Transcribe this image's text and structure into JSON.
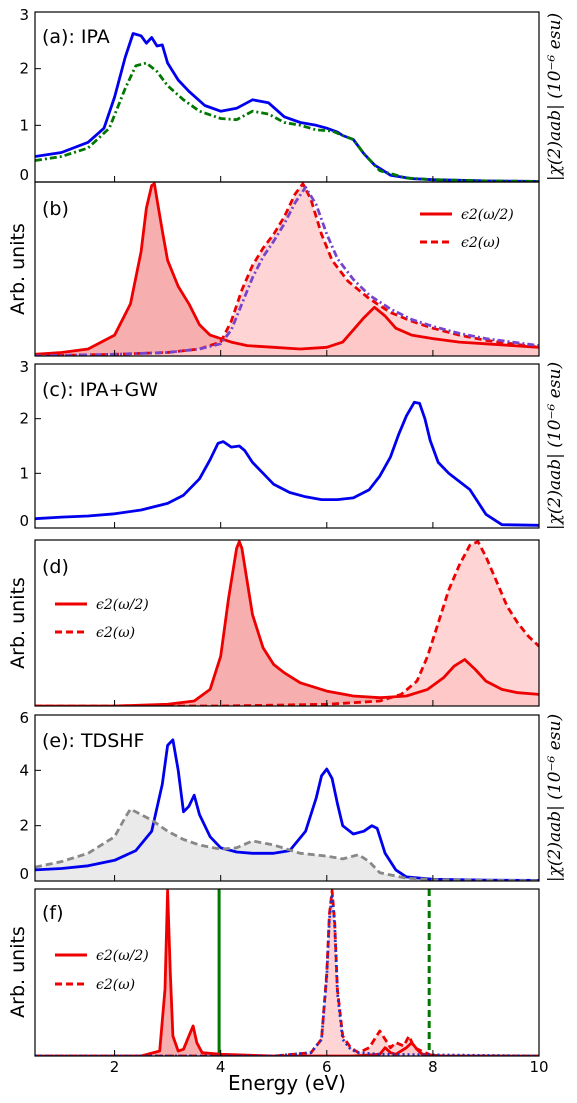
{
  "chart_data": [
    {
      "id": "a",
      "type": "line",
      "panel_label": "(a): IPA",
      "xlim": [
        0.5,
        10
      ],
      "ylim": [
        0,
        3
      ],
      "yticks": [
        "0",
        "1",
        "2",
        "3"
      ],
      "right_label": "|χ(2)aab| (10⁻⁶ esu)",
      "series": [
        {
          "color": "#0000ee",
          "style": "solid",
          "x": [
            0.5,
            1,
            1.5,
            1.8,
            2.0,
            2.2,
            2.35,
            2.5,
            2.6,
            2.7,
            2.8,
            2.9,
            3.0,
            3.2,
            3.4,
            3.7,
            4.0,
            4.3,
            4.6,
            4.9,
            5.2,
            5.5,
            5.8,
            6.0,
            6.2,
            6.3,
            6.5,
            6.7,
            6.9,
            7.2,
            7.6,
            8,
            9,
            10
          ],
          "y": [
            0.45,
            0.52,
            0.7,
            0.95,
            1.5,
            2.2,
            2.62,
            2.58,
            2.45,
            2.55,
            2.4,
            2.42,
            2.1,
            1.8,
            1.6,
            1.35,
            1.25,
            1.3,
            1.45,
            1.4,
            1.15,
            1.05,
            1.0,
            0.95,
            0.88,
            0.82,
            0.75,
            0.5,
            0.3,
            0.12,
            0.06,
            0.04,
            0.02,
            0.01
          ]
        },
        {
          "color": "#007700",
          "style": "dashdot",
          "x": [
            0.5,
            1,
            1.5,
            1.9,
            2.2,
            2.4,
            2.6,
            2.8,
            3.0,
            3.3,
            3.6,
            4.0,
            4.3,
            4.6,
            4.9,
            5.2,
            5.5,
            5.8,
            6.1,
            6.3,
            6.5,
            6.7,
            7.0,
            7.5,
            8,
            9,
            10
          ],
          "y": [
            0.38,
            0.45,
            0.6,
            0.95,
            1.65,
            2.05,
            2.1,
            1.95,
            1.7,
            1.45,
            1.25,
            1.12,
            1.1,
            1.25,
            1.2,
            1.05,
            1.0,
            0.92,
            0.9,
            0.82,
            0.75,
            0.5,
            0.2,
            0.07,
            0.04,
            0.02,
            0.01
          ]
        }
      ]
    },
    {
      "id": "b",
      "type": "area",
      "panel_label": "(b)",
      "ylabel": "Arb. units",
      "xlim": [
        0.5,
        10
      ],
      "ylim": [
        0,
        1
      ],
      "legend": [
        "ϵ2(ω/2)",
        "ϵ2(ω)"
      ],
      "legend_position": "top-right",
      "series": [
        {
          "color": "#ee0000",
          "style": "solid",
          "fill": "#f4a0a0",
          "x": [
            0.5,
            1,
            1.5,
            2.0,
            2.3,
            2.5,
            2.6,
            2.7,
            2.75,
            2.8,
            2.9,
            3.0,
            3.2,
            3.4,
            3.6,
            3.8,
            4.0,
            4.2,
            4.5,
            5.0,
            5.5,
            6.0,
            6.3,
            6.5,
            6.7,
            6.9,
            7.1,
            7.3,
            7.6,
            8,
            8.5,
            9,
            9.5,
            10
          ],
          "y": [
            0.01,
            0.02,
            0.04,
            0.12,
            0.3,
            0.6,
            0.85,
            0.98,
            0.99,
            0.9,
            0.72,
            0.55,
            0.4,
            0.3,
            0.18,
            0.12,
            0.1,
            0.08,
            0.06,
            0.05,
            0.04,
            0.05,
            0.08,
            0.15,
            0.22,
            0.28,
            0.23,
            0.16,
            0.12,
            0.1,
            0.08,
            0.07,
            0.06,
            0.05
          ]
        },
        {
          "color": "#ee0000",
          "style": "dashed",
          "fill": "#ffcccc",
          "x": [
            0.5,
            2,
            3,
            3.6,
            4.0,
            4.2,
            4.4,
            4.6,
            4.8,
            5.0,
            5.2,
            5.4,
            5.55,
            5.7,
            5.9,
            6.1,
            6.4,
            6.8,
            7.2,
            7.6,
            8,
            8.5,
            9,
            9.5,
            10
          ],
          "y": [
            0.0,
            0.01,
            0.02,
            0.04,
            0.08,
            0.2,
            0.38,
            0.52,
            0.62,
            0.7,
            0.8,
            0.93,
            0.99,
            0.9,
            0.7,
            0.55,
            0.43,
            0.33,
            0.25,
            0.2,
            0.16,
            0.12,
            0.09,
            0.07,
            0.05
          ]
        },
        {
          "color": "#7744cc",
          "style": "dashdot",
          "x": [
            0.5,
            2,
            3,
            3.6,
            4.0,
            4.2,
            4.4,
            4.6,
            4.8,
            5.0,
            5.2,
            5.4,
            5.6,
            5.8,
            6.0,
            6.2,
            6.5,
            6.8,
            7.2,
            7.6,
            8,
            8.5,
            9,
            9.5,
            10
          ],
          "y": [
            0.0,
            0.01,
            0.02,
            0.04,
            0.07,
            0.15,
            0.3,
            0.45,
            0.57,
            0.66,
            0.76,
            0.88,
            0.97,
            0.87,
            0.7,
            0.56,
            0.44,
            0.35,
            0.27,
            0.21,
            0.17,
            0.13,
            0.1,
            0.08,
            0.06
          ]
        }
      ]
    },
    {
      "id": "c",
      "type": "line",
      "panel_label": "(c): IPA+GW",
      "xlim": [
        0.5,
        10
      ],
      "ylim": [
        0,
        3
      ],
      "yticks": [
        "0",
        "1",
        "2",
        "3"
      ],
      "right_label": "|χ(2)aab| (10⁻⁶ esu)",
      "series": [
        {
          "color": "#0000ee",
          "style": "solid",
          "x": [
            0.5,
            1,
            1.5,
            2,
            2.5,
            3,
            3.3,
            3.6,
            3.8,
            3.95,
            4.05,
            4.2,
            4.35,
            4.45,
            4.6,
            4.8,
            5.0,
            5.3,
            5.6,
            5.9,
            6.2,
            6.5,
            6.8,
            7.0,
            7.2,
            7.35,
            7.5,
            7.65,
            7.75,
            7.85,
            7.95,
            8.1,
            8.3,
            8.5,
            8.7,
            9.0,
            9.3,
            10
          ],
          "y": [
            0.17,
            0.2,
            0.22,
            0.26,
            0.33,
            0.45,
            0.6,
            0.9,
            1.25,
            1.55,
            1.58,
            1.48,
            1.5,
            1.42,
            1.2,
            1.0,
            0.8,
            0.65,
            0.57,
            0.52,
            0.52,
            0.55,
            0.7,
            0.95,
            1.3,
            1.7,
            2.05,
            2.3,
            2.28,
            2.0,
            1.6,
            1.2,
            1.0,
            0.85,
            0.7,
            0.25,
            0.06,
            0.05
          ]
        }
      ]
    },
    {
      "id": "d",
      "type": "area",
      "panel_label": "(d)",
      "ylabel": "Arb. units",
      "xlim": [
        0.5,
        10
      ],
      "ylim": [
        0,
        1
      ],
      "legend": [
        "ϵ2(ω/2)",
        "ϵ2(ω)"
      ],
      "legend_position": "left",
      "series": [
        {
          "color": "#ee0000",
          "style": "solid",
          "fill": "#f4a0a0",
          "x": [
            0.5,
            2,
            3,
            3.5,
            3.8,
            4.0,
            4.15,
            4.3,
            4.35,
            4.4,
            4.5,
            4.6,
            4.8,
            5.0,
            5.2,
            5.5,
            6.0,
            6.5,
            7.0,
            7.5,
            7.9,
            8.2,
            8.4,
            8.6,
            8.8,
            9.0,
            9.3,
            9.6,
            10
          ],
          "y": [
            0.0,
            0.0,
            0.01,
            0.03,
            0.1,
            0.3,
            0.65,
            0.95,
            0.99,
            0.95,
            0.75,
            0.55,
            0.35,
            0.25,
            0.2,
            0.14,
            0.09,
            0.06,
            0.05,
            0.06,
            0.1,
            0.17,
            0.24,
            0.28,
            0.22,
            0.15,
            0.1,
            0.08,
            0.07
          ]
        },
        {
          "color": "#ee0000",
          "style": "dashed",
          "fill": "#ffcccc",
          "x": [
            0.5,
            4,
            6,
            7,
            7.4,
            7.7,
            7.9,
            8.1,
            8.3,
            8.5,
            8.7,
            8.85,
            9.0,
            9.2,
            9.4,
            9.6,
            9.8,
            10
          ],
          "y": [
            0.0,
            0.0,
            0.01,
            0.03,
            0.07,
            0.15,
            0.3,
            0.5,
            0.7,
            0.85,
            0.97,
            0.99,
            0.9,
            0.75,
            0.6,
            0.5,
            0.42,
            0.36
          ]
        }
      ]
    },
    {
      "id": "e",
      "type": "line",
      "panel_label": "(e): TDSHF",
      "xlim": [
        0.5,
        10
      ],
      "ylim": [
        0,
        6
      ],
      "yticks": [
        "0",
        "2",
        "4",
        "6"
      ],
      "right_label": "|χ(2)aab| (10⁻⁶ esu)",
      "series": [
        {
          "color": "#0000ee",
          "style": "solid",
          "x": [
            0.5,
            1,
            1.5,
            2,
            2.4,
            2.7,
            2.9,
            3.0,
            3.1,
            3.2,
            3.3,
            3.4,
            3.5,
            3.6,
            3.8,
            4.0,
            4.3,
            4.6,
            5.0,
            5.3,
            5.6,
            5.8,
            5.9,
            6.0,
            6.1,
            6.2,
            6.3,
            6.5,
            6.7,
            6.85,
            6.95,
            7.1,
            7.3,
            7.5,
            8,
            9,
            10
          ],
          "y": [
            0.4,
            0.45,
            0.55,
            0.75,
            1.1,
            1.8,
            3.5,
            4.9,
            5.1,
            4.0,
            2.5,
            2.7,
            3.1,
            2.4,
            1.6,
            1.2,
            1.05,
            1.0,
            1.0,
            1.1,
            1.8,
            3.0,
            3.8,
            4.05,
            3.7,
            2.8,
            2.0,
            1.7,
            1.8,
            2.0,
            1.9,
            1.0,
            0.4,
            0.15,
            0.06,
            0.03,
            0.02
          ]
        },
        {
          "color": "#888888",
          "style": "dashed",
          "fill": "#e6e6e6",
          "x": [
            0.5,
            1,
            1.5,
            2.0,
            2.2,
            2.3,
            2.5,
            2.7,
            3.0,
            3.3,
            3.6,
            4.0,
            4.3,
            4.6,
            5.0,
            5.5,
            6.0,
            6.3,
            6.6,
            6.8,
            7.0,
            7.5,
            8,
            9,
            10
          ],
          "y": [
            0.5,
            0.7,
            1.0,
            1.6,
            2.3,
            2.6,
            2.4,
            2.2,
            1.8,
            1.5,
            1.3,
            1.15,
            1.2,
            1.45,
            1.3,
            1.0,
            0.9,
            0.8,
            0.95,
            0.7,
            0.3,
            0.1,
            0.05,
            0.02,
            0.01
          ]
        }
      ]
    },
    {
      "id": "f",
      "type": "area",
      "panel_label": "(f)",
      "ylabel": "Arb. units",
      "xlim": [
        0.5,
        10
      ],
      "ylim": [
        0,
        1
      ],
      "legend": [
        "ϵ2(ω/2)",
        "ϵ2(ω)"
      ],
      "legend_position": "left",
      "vlines": [
        {
          "x": 3.97,
          "color": "#007700",
          "style": "solid"
        },
        {
          "x": 7.93,
          "color": "#007700",
          "style": "dashed"
        }
      ],
      "series": [
        {
          "color": "#ee0000",
          "style": "solid",
          "fill": "#f4a0a0",
          "x": [
            0.5,
            2.5,
            2.85,
            2.95,
            3.0,
            3.05,
            3.1,
            3.2,
            3.3,
            3.4,
            3.48,
            3.55,
            3.65,
            4,
            5,
            6.0,
            6.5,
            7.0,
            7.1,
            7.2,
            7.3,
            7.5,
            7.6,
            7.7,
            7.8,
            8.2,
            10
          ],
          "y": [
            0.0,
            0.0,
            0.03,
            0.4,
            0.99,
            0.5,
            0.12,
            0.03,
            0.04,
            0.12,
            0.18,
            0.08,
            0.02,
            0.01,
            0.0,
            0.0,
            0.0,
            0.01,
            0.05,
            0.02,
            0.01,
            0.05,
            0.08,
            0.04,
            0.01,
            0.0,
            0.0
          ]
        },
        {
          "color": "#ee0000",
          "style": "dashed",
          "fill": "#ffcccc",
          "x": [
            0.5,
            5,
            5.7,
            5.9,
            6.0,
            6.05,
            6.1,
            6.15,
            6.2,
            6.3,
            6.45,
            6.6,
            6.8,
            6.9,
            7.0,
            7.1,
            7.2,
            7.3,
            7.45,
            7.55,
            7.65,
            8,
            10
          ],
          "y": [
            0.0,
            0.0,
            0.02,
            0.1,
            0.5,
            0.85,
            0.99,
            0.8,
            0.4,
            0.12,
            0.05,
            0.02,
            0.05,
            0.1,
            0.15,
            0.1,
            0.05,
            0.08,
            0.06,
            0.12,
            0.05,
            0.0,
            0.0
          ]
        },
        {
          "color": "#2233cc",
          "style": "dotted",
          "x": [
            0.5,
            5,
            5.7,
            5.9,
            6.0,
            6.05,
            6.1,
            6.15,
            6.2,
            6.3,
            6.45,
            6.6,
            7,
            10
          ],
          "y": [
            0.0,
            0.0,
            0.02,
            0.1,
            0.48,
            0.82,
            0.97,
            0.78,
            0.38,
            0.1,
            0.04,
            0.02,
            0.01,
            0.0
          ]
        }
      ]
    }
  ],
  "xaxis": {
    "label": "Energy (eV)",
    "ticks": [
      "2",
      "4",
      "6",
      "8",
      "10"
    ]
  }
}
